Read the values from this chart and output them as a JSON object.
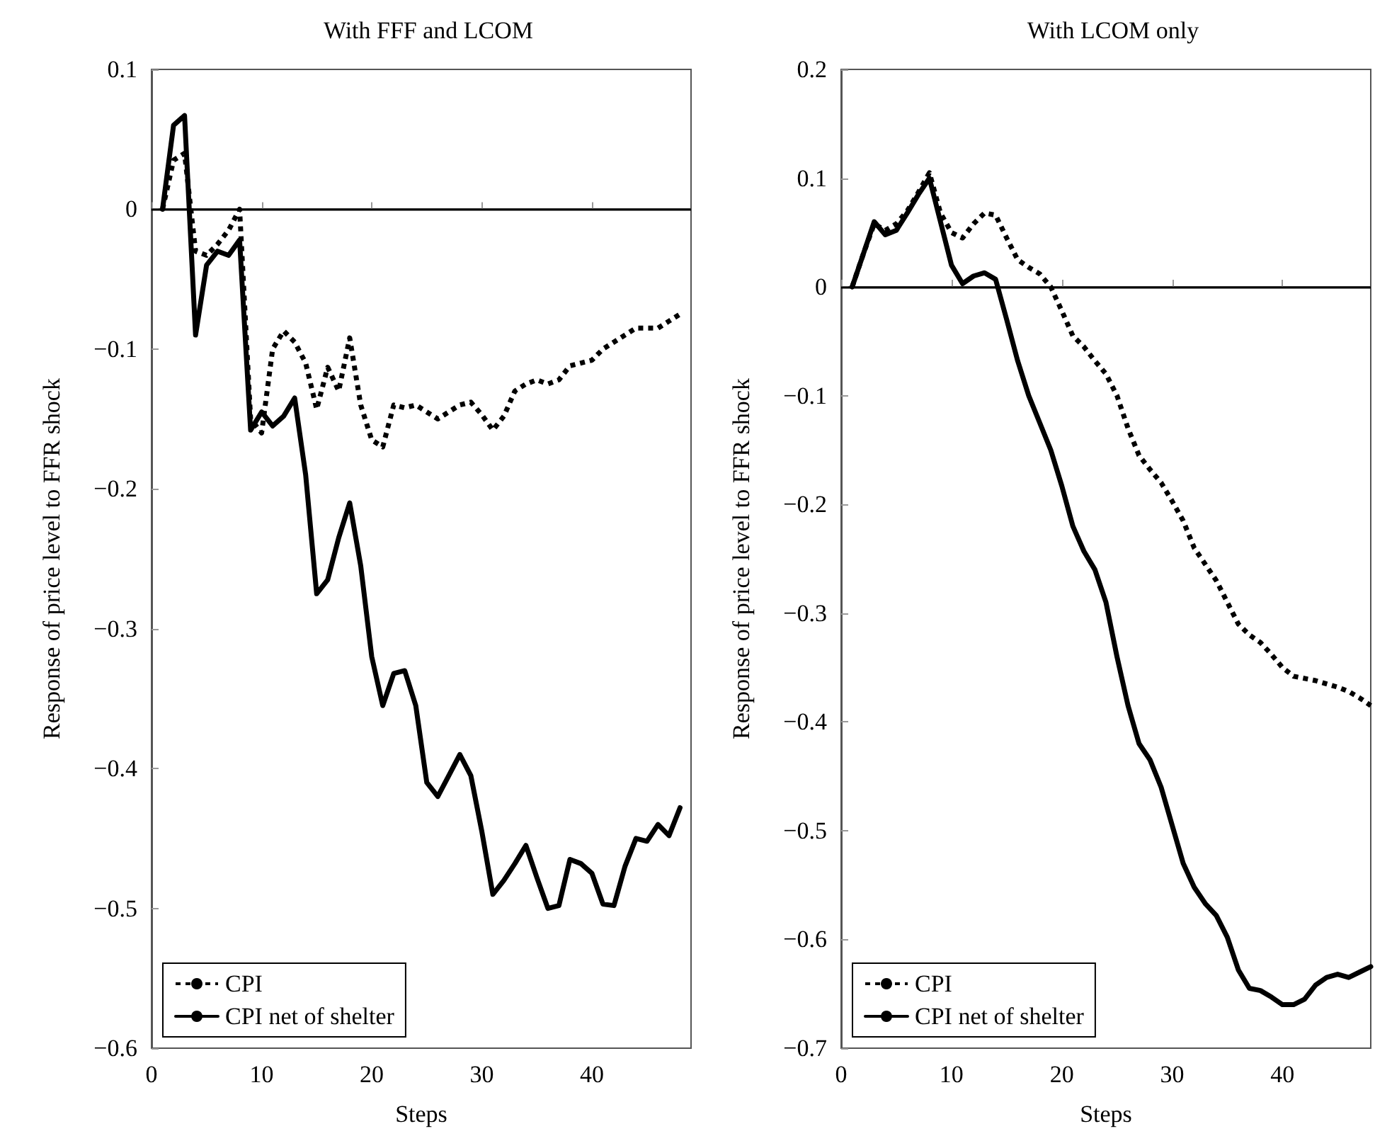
{
  "chart_data": [
    {
      "type": "line",
      "title": "With FFF and LCOM",
      "xlabel": "Steps",
      "ylabel": "Response of price level to FFR shock",
      "legend": "bottom left",
      "marker": "none",
      "x": [
        1,
        2,
        3,
        4,
        5,
        6,
        7,
        8,
        9,
        10,
        11,
        12,
        13,
        14,
        15,
        16,
        17,
        18,
        19,
        20,
        21,
        22,
        23,
        24,
        25,
        26,
        27,
        28,
        29,
        30,
        31,
        32,
        33,
        34,
        35,
        36,
        37,
        38,
        39,
        40,
        41,
        42,
        43,
        44,
        45,
        46,
        47,
        48
      ],
      "xlim": [
        0,
        49
      ],
      "xticks": [
        0,
        10,
        20,
        30,
        40
      ],
      "ylim": [
        -0.6,
        0.1
      ],
      "yticks": [
        -0.6,
        -0.5,
        -0.4,
        -0.3,
        -0.2,
        -0.1,
        0,
        0.1
      ],
      "ref_lines": [
        {
          "axis": "y",
          "value": 0,
          "color": "#000000"
        }
      ],
      "series": [
        {
          "name": "CPI",
          "color": "#000000",
          "line_style": "dotted",
          "values": [
            0,
            0.035,
            0.04,
            -0.03,
            -0.033,
            -0.025,
            -0.015,
            0,
            -0.15,
            -0.16,
            -0.1,
            -0.087,
            -0.095,
            -0.11,
            -0.143,
            -0.113,
            -0.13,
            -0.092,
            -0.14,
            -0.165,
            -0.17,
            -0.14,
            -0.142,
            -0.14,
            -0.145,
            -0.15,
            -0.145,
            -0.14,
            -0.138,
            -0.147,
            -0.158,
            -0.148,
            -0.13,
            -0.125,
            -0.122,
            -0.125,
            -0.122,
            -0.112,
            -0.11,
            -0.108,
            -0.1,
            -0.095,
            -0.09,
            -0.085,
            -0.085,
            -0.085,
            -0.08,
            -0.075
          ]
        },
        {
          "name": "CPI net of shelter",
          "color": "#000000",
          "line_style": "solid",
          "values": [
            0,
            0.06,
            0.067,
            -0.09,
            -0.04,
            -0.03,
            -0.033,
            -0.022,
            -0.158,
            -0.145,
            -0.155,
            -0.148,
            -0.135,
            -0.19,
            -0.275,
            -0.265,
            -0.235,
            -0.21,
            -0.255,
            -0.32,
            -0.355,
            -0.332,
            -0.33,
            -0.355,
            -0.41,
            -0.42,
            -0.405,
            -0.39,
            -0.405,
            -0.445,
            -0.49,
            -0.48,
            -0.468,
            -0.455,
            -0.478,
            -0.5,
            -0.498,
            -0.465,
            -0.468,
            -0.475,
            -0.497,
            -0.498,
            -0.47,
            -0.45,
            -0.452,
            -0.44,
            -0.448,
            -0.428
          ]
        }
      ]
    },
    {
      "type": "line",
      "title": "With LCOM only",
      "xlabel": "Steps",
      "ylabel": "Response of price level to FFR shock",
      "legend": "bottom left",
      "marker": "none",
      "x": [
        1,
        2,
        3,
        4,
        5,
        6,
        7,
        8,
        9,
        10,
        11,
        12,
        13,
        14,
        15,
        16,
        17,
        18,
        19,
        20,
        21,
        22,
        23,
        24,
        25,
        26,
        27,
        28,
        29,
        30,
        31,
        32,
        33,
        34,
        35,
        36,
        37,
        38,
        39,
        40,
        41,
        42,
        43,
        44,
        45,
        46,
        47,
        48
      ],
      "xlim": [
        0,
        48
      ],
      "xticks": [
        0,
        10,
        20,
        30,
        40
      ],
      "ylim": [
        -0.7,
        0.2
      ],
      "yticks": [
        -0.7,
        -0.6,
        -0.5,
        -0.4,
        -0.3,
        -0.2,
        -0.1,
        0,
        0.1,
        0.2
      ],
      "ref_lines": [
        {
          "axis": "y",
          "value": 0,
          "color": "#000000"
        }
      ],
      "series": [
        {
          "name": "CPI",
          "color": "#000000",
          "line_style": "dotted",
          "values": [
            0,
            0.03,
            0.058,
            0.052,
            0.058,
            0.07,
            0.087,
            0.105,
            0.068,
            0.05,
            0.045,
            0.058,
            0.068,
            0.066,
            0.045,
            0.025,
            0.018,
            0.012,
            0,
            -0.022,
            -0.045,
            -0.055,
            -0.068,
            -0.08,
            -0.1,
            -0.13,
            -0.155,
            -0.168,
            -0.18,
            -0.197,
            -0.215,
            -0.24,
            -0.255,
            -0.27,
            -0.29,
            -0.31,
            -0.32,
            -0.327,
            -0.338,
            -0.35,
            -0.358,
            -0.36,
            -0.362,
            -0.365,
            -0.368,
            -0.372,
            -0.378,
            -0.385
          ]
        },
        {
          "name": "CPI net of shelter",
          "color": "#000000",
          "line_style": "solid",
          "values": [
            0,
            0.03,
            0.06,
            0.048,
            0.052,
            0.068,
            0.085,
            0.1,
            0.06,
            0.02,
            0.003,
            0.01,
            0.013,
            0.007,
            -0.03,
            -0.068,
            -0.1,
            -0.125,
            -0.15,
            -0.183,
            -0.22,
            -0.243,
            -0.26,
            -0.29,
            -0.34,
            -0.385,
            -0.42,
            -0.435,
            -0.46,
            -0.495,
            -0.53,
            -0.552,
            -0.567,
            -0.578,
            -0.598,
            -0.628,
            -0.645,
            -0.647,
            -0.653,
            -0.66,
            -0.66,
            -0.655,
            -0.642,
            -0.635,
            -0.632,
            -0.635,
            -0.63,
            -0.625
          ]
        }
      ]
    }
  ]
}
